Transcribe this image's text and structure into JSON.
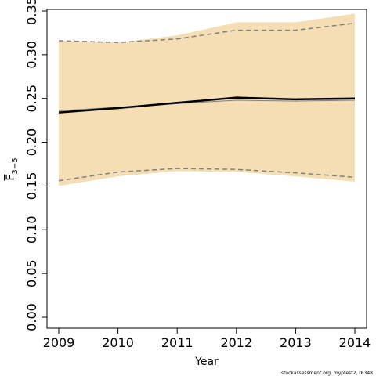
{
  "chart_data": {
    "type": "line",
    "title": "",
    "xlabel": "Year",
    "ylabel_main": "F",
    "ylabel_sub": "3−5",
    "x": [
      2009,
      2010,
      2011,
      2012,
      2013,
      2014
    ],
    "xlim": [
      2009,
      2014
    ],
    "ylim": [
      0.0,
      0.35
    ],
    "xticks": [
      "2009",
      "2010",
      "2011",
      "2012",
      "2013",
      "2014"
    ],
    "yticks": [
      "0.00",
      "0.05",
      "0.10",
      "0.15",
      "0.20",
      "0.25",
      "0.30",
      "0.35"
    ],
    "grid": false,
    "band": {
      "upper": [
        0.316,
        0.314,
        0.322,
        0.337,
        0.337,
        0.347
      ],
      "lower": [
        0.15,
        0.161,
        0.167,
        0.166,
        0.161,
        0.155
      ],
      "color": "#f5deb3"
    },
    "series": [
      {
        "values": [
          0.234,
          0.239,
          0.245,
          0.251,
          0.249,
          0.25
        ],
        "color": "#000000",
        "style": "solid-thick"
      },
      {
        "values": [
          0.236,
          0.24,
          0.244,
          0.248,
          0.247,
          0.248
        ],
        "color": "#808080",
        "style": "solid-thin"
      },
      {
        "values": [
          0.316,
          0.314,
          0.318,
          0.328,
          0.328,
          0.336
        ],
        "color": "#808080",
        "style": "dashed"
      },
      {
        "values": [
          0.156,
          0.166,
          0.17,
          0.169,
          0.165,
          0.16
        ],
        "color": "#808080",
        "style": "dashed"
      }
    ]
  },
  "footer_text": "stockassessment.org, myptest2, r6348"
}
